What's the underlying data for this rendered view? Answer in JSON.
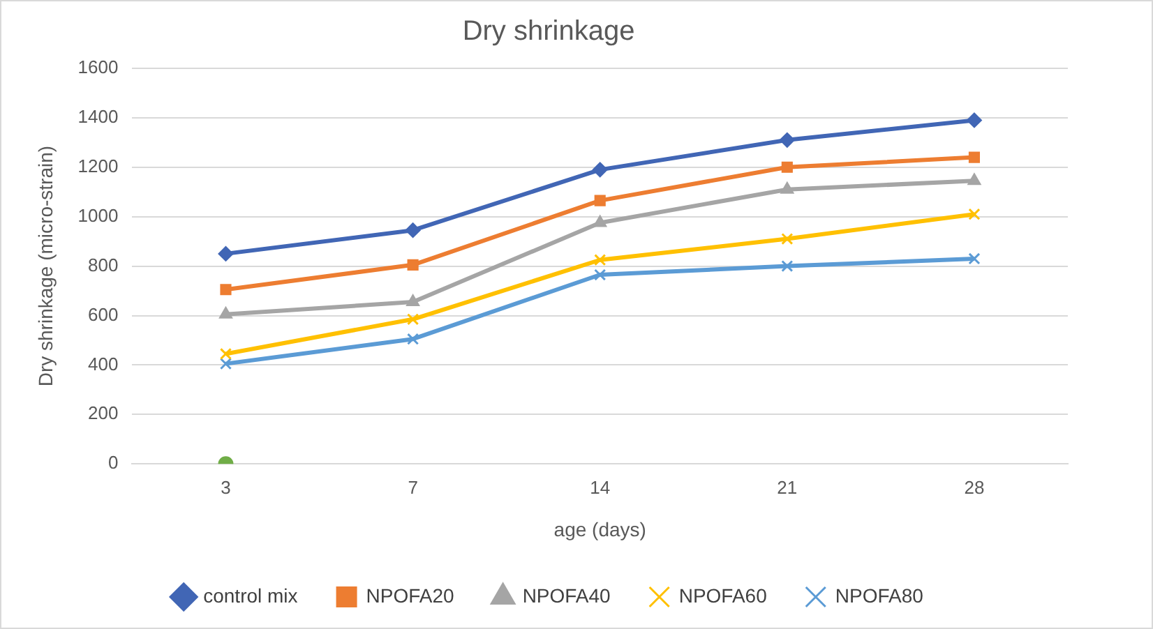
{
  "chart_data": {
    "type": "line",
    "title": "Dry shrinkage",
    "xlabel": "age (days)",
    "ylabel": "Dry shrinkage (micro-strain)",
    "categories": [
      "3",
      "7",
      "14",
      "21",
      "28"
    ],
    "series": [
      {
        "name": "control mix",
        "color": "#4166b5",
        "marker": "diamond",
        "values": [
          850,
          945,
          1190,
          1310,
          1390
        ]
      },
      {
        "name": "NPOFA20",
        "color": "#ed7d31",
        "marker": "square",
        "values": [
          705,
          805,
          1065,
          1200,
          1240
        ]
      },
      {
        "name": "NPOFA40",
        "color": "#a5a5a5",
        "marker": "triangle",
        "values": [
          605,
          655,
          975,
          1110,
          1145
        ]
      },
      {
        "name": "NPOFA60",
        "color": "#ffc000",
        "marker": "cross",
        "values": [
          445,
          585,
          825,
          910,
          1010
        ]
      },
      {
        "name": "NPOFA80",
        "color": "#5b9bd5",
        "marker": "cross",
        "values": [
          405,
          505,
          765,
          800,
          830
        ]
      },
      {
        "type": "scatter",
        "color": "#70ad47",
        "marker": "circle",
        "x": [
          "3"
        ],
        "values": [
          0
        ]
      }
    ],
    "ylim": [
      0,
      1600
    ],
    "yticks": [
      0,
      200,
      400,
      600,
      800,
      1000,
      1200,
      1400,
      1600
    ],
    "grid": "y",
    "legend": "bottom"
  }
}
